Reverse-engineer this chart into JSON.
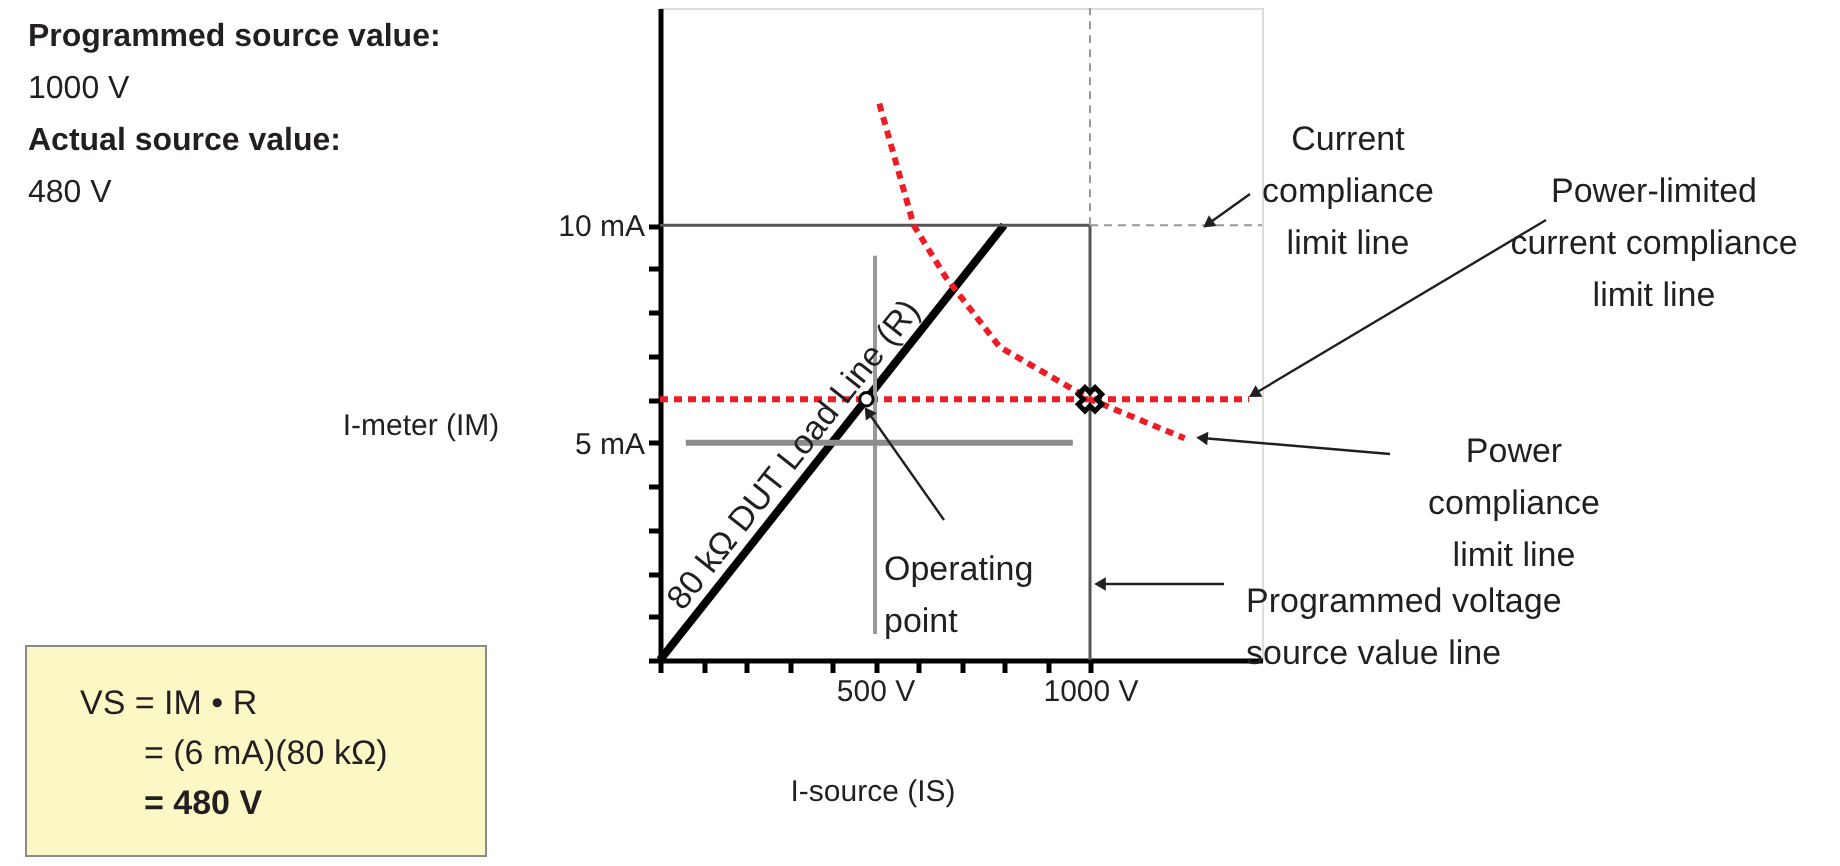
{
  "chart_data": {
    "type": "line",
    "xlabel": "I-source (IS)",
    "ylabel": "I-meter (IM)",
    "xlim": [
      0,
      1400
    ],
    "ylim": [
      0,
      15
    ],
    "xticks": [
      {
        "value": 0,
        "label": null
      },
      {
        "value": 100,
        "label": null
      },
      {
        "value": 200,
        "label": null
      },
      {
        "value": 300,
        "label": null
      },
      {
        "value": 400,
        "label": null
      },
      {
        "value": 500,
        "label": "500 V"
      },
      {
        "value": 600,
        "label": null
      },
      {
        "value": 700,
        "label": null
      },
      {
        "value": 800,
        "label": null
      },
      {
        "value": 900,
        "label": null
      },
      {
        "value": 1000,
        "label": "1000 V"
      }
    ],
    "yticks": [
      {
        "value": 0,
        "label": null
      },
      {
        "value": 1,
        "label": null
      },
      {
        "value": 2,
        "label": null
      },
      {
        "value": 3,
        "label": null
      },
      {
        "value": 4,
        "label": null
      },
      {
        "value": 5,
        "label": "5 mA"
      },
      {
        "value": 6,
        "label": null
      },
      {
        "value": 7,
        "label": null
      },
      {
        "value": 8,
        "label": null
      },
      {
        "value": 9,
        "label": null
      },
      {
        "value": 10,
        "label": "10 mA"
      }
    ],
    "grid": false,
    "series": [
      {
        "name": "80 kΩ DUT Load Line (R)",
        "type": "line",
        "color": "#000000",
        "line_style": "solid",
        "x": [
          0,
          800
        ],
        "values": [
          0,
          10
        ]
      },
      {
        "type": "line",
        "color": "#555555",
        "line_style": "solid",
        "x": [
          0,
          1000
        ],
        "values": [
          10,
          10
        ]
      },
      {
        "name": "Programmed voltage source value line",
        "type": "line",
        "color": "#555555",
        "line_style": "solid",
        "x": [
          1000,
          1000
        ],
        "values": [
          0,
          10
        ]
      },
      {
        "name": "Current compliance limit line",
        "type": "line",
        "color": "#999999",
        "line_style": "dashed",
        "x": [
          1000,
          1400
        ],
        "values": [
          10,
          10
        ]
      },
      {
        "type": "line",
        "color": "#999999",
        "line_style": "dashed",
        "x": [
          1000,
          1000
        ],
        "values": [
          10,
          15
        ]
      },
      {
        "name": "Power-limited current compliance limit line",
        "type": "line",
        "color": "#ee1c25",
        "line_style": "dashed",
        "x": [
          0,
          1370
        ],
        "values": [
          6,
          6
        ]
      },
      {
        "name": "Power compliance limit line",
        "type": "line",
        "color": "#ee1c25",
        "line_style": "dashed",
        "x": [
          510,
          590,
          665,
          790,
          1000,
          1220
        ],
        "values": [
          12.8,
          10.0,
          8.8,
          7.2,
          6.0,
          5.1
        ]
      },
      {
        "type": "line",
        "color": "#999999",
        "line_style": "solid",
        "x": [
          500,
          500
        ],
        "values": [
          0.6,
          9.3
        ]
      },
      {
        "type": "line",
        "color": "#8c8c8c",
        "line_style": "solid",
        "x": [
          60,
          960
        ],
        "values": [
          5,
          5
        ]
      },
      {
        "type": "scatter",
        "marker": "cross",
        "color": "#000000",
        "x": [
          1000
        ],
        "values": [
          6
        ]
      },
      {
        "name": "Operating point",
        "type": "scatter",
        "marker": "circle",
        "color": "#000000",
        "x": [
          480
        ],
        "values": [
          6
        ]
      }
    ],
    "annotations": [
      "Programmed source value:",
      "1000 V",
      "Actual source value:",
      "480 V",
      "VS = IM • R",
      "= (6 mA)(80 kΩ)",
      "= 480 V"
    ]
  }
}
